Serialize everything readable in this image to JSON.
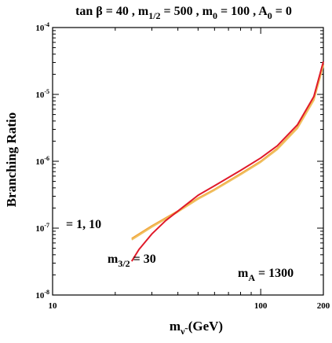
{
  "chart_data": {
    "type": "line",
    "title_parts": {
      "tanb": "tan",
      "beta": "β",
      "tanb_val": " = 40 ,",
      "m": "m",
      "half_sub": "1/2",
      "half_val": " = 500 ,",
      "m0_sub": "0",
      "m0_val": " = 100 ,",
      "a": "A",
      "a0_sub": "0",
      "a0_val": " = 0"
    },
    "xlabel_parts": {
      "m": "m",
      "sub": "ν̃",
      "unit": "(GeV)"
    },
    "ylabel": "Branching Ratio",
    "x_scale": "log",
    "y_scale": "log",
    "xlim": [
      10,
      200
    ],
    "ylim": [
      1e-08,
      0.0001
    ],
    "x_tick_labels": [
      {
        "value": 10,
        "label": "10"
      },
      {
        "value": 100,
        "label": "100"
      },
      {
        "value": 200,
        "label": "200"
      }
    ],
    "y_tick_labels": [
      {
        "value": 1e-08,
        "base": "10",
        "exp": "-8"
      },
      {
        "value": 1e-07,
        "base": "10",
        "exp": "-7"
      },
      {
        "value": 1e-06,
        "base": "10",
        "exp": "-6"
      },
      {
        "value": 1e-05,
        "base": "10",
        "exp": "-5"
      },
      {
        "value": 0.0001,
        "base": "10",
        "exp": "-4"
      }
    ],
    "annotations": {
      "m32_label": "= 1, 10",
      "m32_30_m": "m",
      "m32_30_sub": "3/2",
      "m32_30_val": " = 30",
      "ma_m": "m",
      "ma_sub": "A",
      "ma_val": " = 1300"
    },
    "series": [
      {
        "color": "#f2a33a",
        "x": [
          24,
          30,
          40,
          50,
          60,
          80,
          100,
          120,
          150,
          180,
          200
        ],
        "y": [
          7e-08,
          1.08e-07,
          1.8e-07,
          2.8e-07,
          3.8e-07,
          6.5e-07,
          1e-06,
          1.55e-06,
          3.2e-06,
          8.5e-06,
          2.8e-05
        ]
      },
      {
        "color": "#f0c060",
        "x": [
          24,
          30,
          40,
          50,
          60,
          80,
          100,
          120,
          150,
          180,
          200
        ],
        "y": [
          6.7e-08,
          1.04e-07,
          1.75e-07,
          2.72e-07,
          3.7e-07,
          6.3e-07,
          9.7e-07,
          1.5e-06,
          3.1e-06,
          8.2e-06,
          2.7e-05
        ]
      },
      {
        "color": "#e01a2a",
        "x": [
          24,
          26,
          30,
          35,
          40,
          50,
          60,
          80,
          100,
          120,
          150,
          180,
          200
        ],
        "y": [
          3.2e-08,
          4.8e-08,
          8.2e-08,
          1.3e-07,
          1.8e-07,
          3.1e-07,
          4.3e-07,
          7.3e-07,
          1.12e-06,
          1.7e-06,
          3.5e-06,
          9.3e-06,
          3.1e-05
        ]
      }
    ]
  }
}
